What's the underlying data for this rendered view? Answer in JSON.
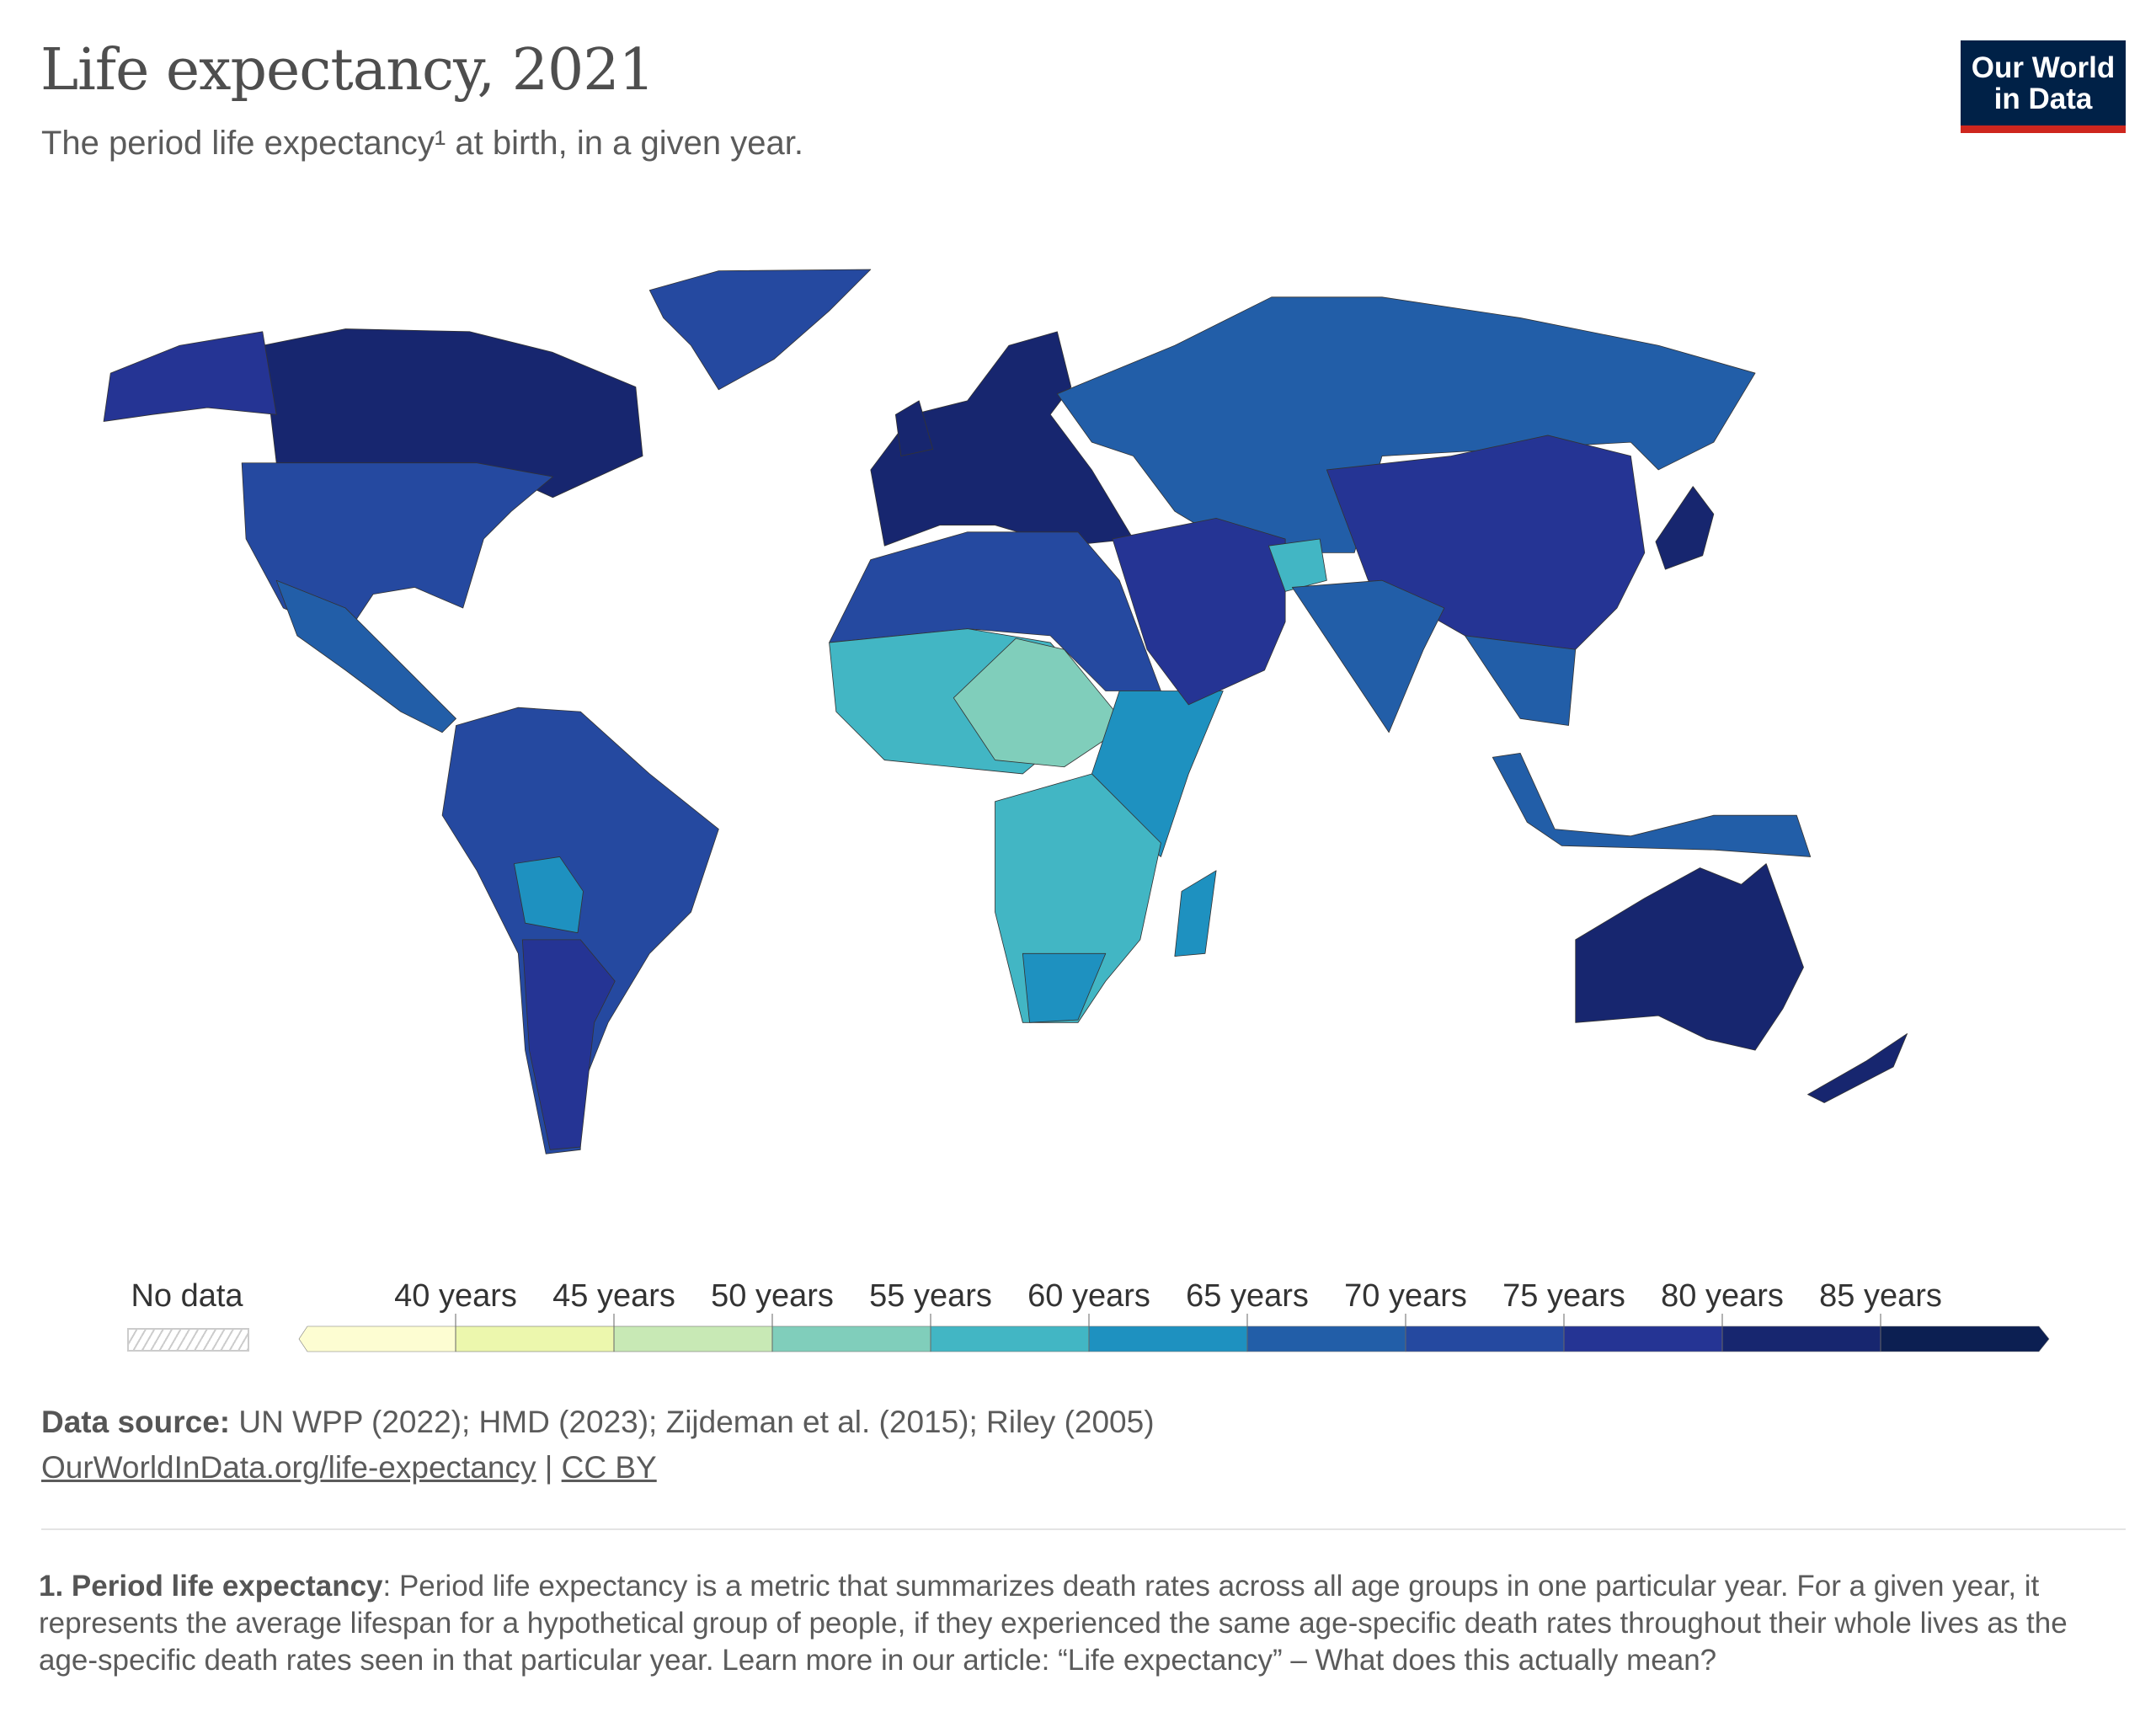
{
  "header": {
    "title": "Life expectancy, 2021",
    "subtitle": "The period life expectancy¹ at birth, in a given year.",
    "logo_line1": "Our World",
    "logo_line2": "in Data"
  },
  "legend": {
    "no_data_label": "No data",
    "bins": [
      "40 years",
      "45 years",
      "50 years",
      "55 years",
      "60 years",
      "65 years",
      "70 years",
      "75 years",
      "80 years",
      "85 years"
    ],
    "colors": [
      "#fdfdd2",
      "#ecf7ad",
      "#c8e9b5",
      "#80cebb",
      "#42b6c4",
      "#1e91c0",
      "#225ea8",
      "#2549a0",
      "#253494",
      "#17266f",
      "#0c1f52"
    ]
  },
  "footer": {
    "source_label": "Data source:",
    "source_text": "UN WPP (2022); HMD (2023); Zijdeman et al. (2015); Riley (2005)",
    "link_text": "OurWorldInData.org/life-expectancy",
    "separator": "|",
    "license": "CC BY",
    "footnote_label": "1. Period life expectancy",
    "footnote_text": ": Period life expectancy is a metric that summarizes death rates across all age groups in one particular year. For a given year, it represents the average lifespan for a hypothetical group of people, if they experienced the same age-specific death rates throughout their whole lives as the age-specific death rates seen in that particular year. Learn more in our article: “Life expectancy” – What does this actually mean?"
  }
}
